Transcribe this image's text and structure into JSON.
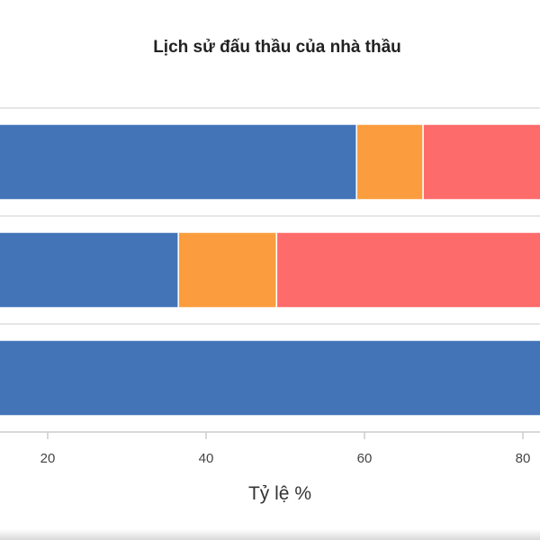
{
  "chart_data": {
    "type": "bar",
    "orientation": "horizontal",
    "stacked": true,
    "title": "Lịch sử đấu thầu của nhà thầu",
    "xlabel": "Tỷ lệ %",
    "ylabel": "",
    "xlim": [
      0,
      100
    ],
    "xticks": [
      "20",
      "40",
      "60",
      "80"
    ],
    "categories": [
      "",
      "",
      ""
    ],
    "series": [
      {
        "color": "#4374b8",
        "values": [
          100,
          36.5,
          59
        ]
      },
      {
        "color": "#fb9d3e",
        "values": [
          0,
          12.4,
          8.4
        ]
      },
      {
        "color": "#fe6b6b",
        "values": [
          0,
          51.1,
          32.6
        ]
      }
    ],
    "grid": true,
    "legend": "none"
  }
}
